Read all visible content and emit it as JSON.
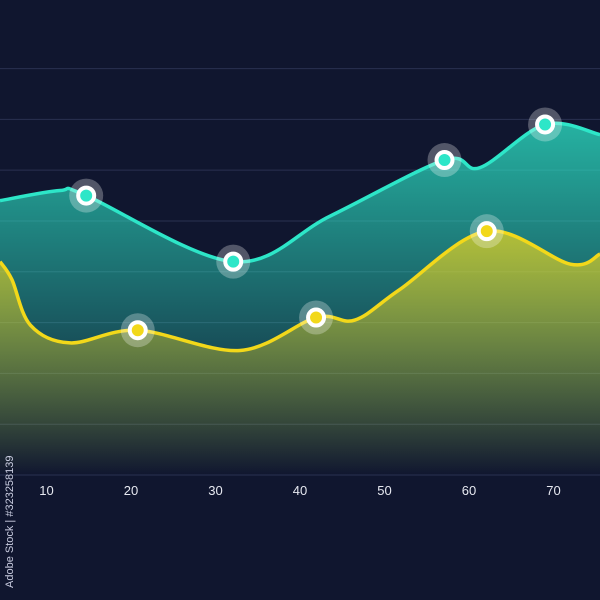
{
  "chart_data": {
    "type": "area",
    "title": "",
    "xlabel": "",
    "ylabel": "",
    "xlim": [
      4.5,
      75.5
    ],
    "ylim": [
      0,
      9.35
    ],
    "x_ticks": [
      10,
      20,
      30,
      40,
      50,
      60,
      70
    ],
    "y_gridlines": [
      0,
      1,
      2,
      3,
      4,
      5,
      6,
      7,
      8
    ],
    "grid": true,
    "series": [
      {
        "color": "#2de6c8",
        "curve": [
          [
            4.5,
            5.4
          ],
          [
            11.6,
            5.6
          ],
          [
            14.7,
            5.5
          ],
          [
            32.1,
            4.2
          ],
          [
            43.6,
            5.1
          ],
          [
            57.1,
            6.2
          ],
          [
            61.3,
            6.05
          ],
          [
            69.0,
            6.9
          ],
          [
            75.5,
            6.7
          ]
        ],
        "markers": [
          [
            14.7,
            5.5
          ],
          [
            32.1,
            4.2
          ],
          [
            57.1,
            6.2
          ],
          [
            69.0,
            6.9
          ]
        ]
      },
      {
        "color": "#f2d81a",
        "curve": [
          [
            4.5,
            4.2
          ],
          [
            5.9,
            3.85
          ],
          [
            8.1,
            2.95
          ],
          [
            12.8,
            2.6
          ],
          [
            20.8,
            2.85
          ],
          [
            32.9,
            2.45
          ],
          [
            41.9,
            3.1
          ],
          [
            46.5,
            3.05
          ],
          [
            51.8,
            3.65
          ],
          [
            62.1,
            4.8
          ],
          [
            72.0,
            4.15
          ],
          [
            75.5,
            4.35
          ]
        ],
        "markers": [
          [
            20.8,
            2.85
          ],
          [
            41.9,
            3.1
          ],
          [
            62.1,
            4.8
          ]
        ]
      }
    ]
  },
  "watermark": "Adobe Stock | #323258139",
  "colors": {
    "background": "#10162f",
    "grid": "#2a3150",
    "tick_text": "#e6e8f0"
  }
}
